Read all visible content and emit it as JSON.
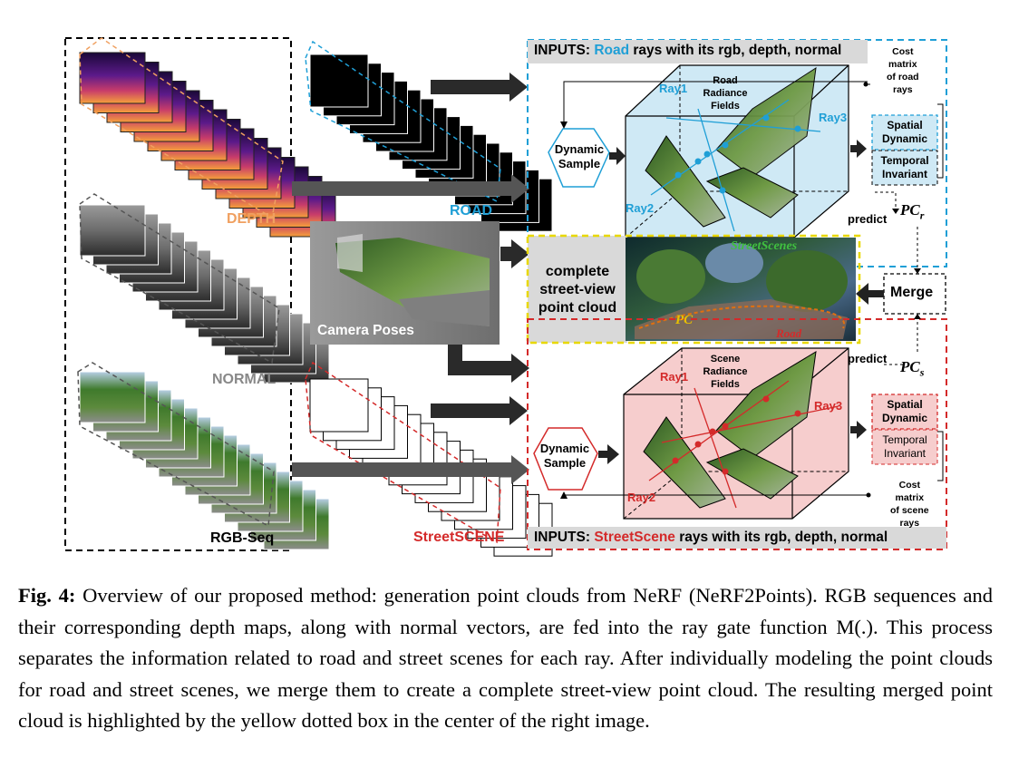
{
  "figure": {
    "stack_labels": {
      "depth": "DEPTH",
      "normal": "NORMAL",
      "rgb_seq": "RGB-Seq",
      "road": "ROAD",
      "street_scene": "StreetSCENE"
    },
    "camera_poses": "Camera Poses",
    "road_panel": {
      "inputs_prefix": "INPUTS:",
      "inputs_highlight": "Road",
      "inputs_suffix": "rays with its rgb, depth, normal",
      "cost_matrix": [
        "Cost",
        "matrix",
        "of road",
        "rays"
      ],
      "dynamic_sample": [
        "Dynamic",
        "Sample"
      ],
      "radiance_fields": [
        "Road",
        "Radiance",
        "Fields"
      ],
      "rays": [
        "Ray1",
        "Ray2",
        "Ray3"
      ],
      "spatial_dynamic": [
        "Spatial",
        "Dynamic"
      ],
      "temporal_invariant": [
        "Temporal",
        "Invariant"
      ],
      "predict": "predict",
      "pc_symbol": "PC",
      "pc_subscript": "r"
    },
    "center": {
      "complete_text": [
        "complete",
        "street-view",
        "point cloud"
      ],
      "merge": "Merge",
      "overlay_title": "StreetScenes",
      "overlay_pc_text": "PC",
      "overlay_road": "Road"
    },
    "scene_panel": {
      "inputs_prefix": "INPUTS:",
      "inputs_highlight": "StreetScene",
      "inputs_suffix": "rays with its rgb, depth, normal",
      "cost_matrix": [
        "Cost",
        "matrix",
        "of scene",
        "rays"
      ],
      "dynamic_sample": [
        "Dynamic",
        "Sample"
      ],
      "radiance_fields": [
        "Scene",
        "Radiance",
        "Fields"
      ],
      "rays": [
        "Ray1",
        "Ray2",
        "Ray3"
      ],
      "spatial_dynamic": [
        "Spatial",
        "Dynamic"
      ],
      "temporal_invariant": [
        "Temporal",
        "Invariant"
      ],
      "predict": "predict",
      "pc_symbol": "PC",
      "pc_subscript": "s"
    },
    "colors": {
      "road_blue": "#1f9fd6",
      "road_panel_fill": "#cfe9f5",
      "scene_red": "#d42a2a",
      "scene_panel_fill": "#f6cdcd",
      "depth_orange": "#f0a060",
      "center_yellow": "#e8d800",
      "gray_band": "#dcdcdc"
    }
  },
  "caption": {
    "label": "Fig. 4:",
    "text": "Overview of our proposed method: generation point clouds from NeRF (NeRF2Points). RGB sequences and their corresponding depth maps, along with normal vectors, are fed into the ray gate function M(.). This process separates the information related to road and street scenes for each ray. After individually modeling the point clouds for road and street scenes, we merge them to create a complete street-view point cloud. The resulting merged point cloud is highlighted by the yellow dotted box in the center of the right image."
  }
}
